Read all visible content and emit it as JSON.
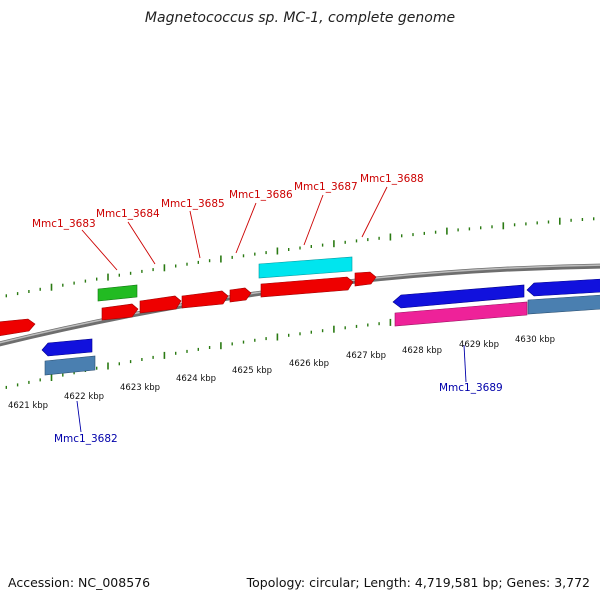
{
  "title": "Magnetococcus sp. MC-1, complete genome",
  "footer": {
    "accession": "Accession: NC_008576",
    "summary": "Topology: circular; Length: 4,719,581 bp; Genes: 3,772"
  },
  "scale_labels": [
    "4621 kbp",
    "4622 kbp",
    "4623 kbp",
    "4624 kbp",
    "4625 kbp",
    "4626 kbp",
    "4627 kbp",
    "4628 kbp",
    "4629 kbp",
    "4630 kbp"
  ],
  "gene_labels_top": [
    "Mmc1_3683",
    "Mmc1_3684",
    "Mmc1_3685",
    "Mmc1_3686",
    "Mmc1_3687",
    "Mmc1_3688"
  ],
  "gene_labels_bottom": [
    "Mmc1_3682",
    "Mmc1_3689"
  ],
  "colors": {
    "forward_cds": "#ee0000",
    "reverse_cds": "#1111dd",
    "rrna": "#22bb22",
    "trna": "#00e5ee",
    "reverse_feature": "#4a7fb0",
    "misc_feature": "#ee2299",
    "backbone": "#888888",
    "ticks": "#2a7a12",
    "label_red": "#cc0000",
    "label_blue": "#0000aa"
  }
}
